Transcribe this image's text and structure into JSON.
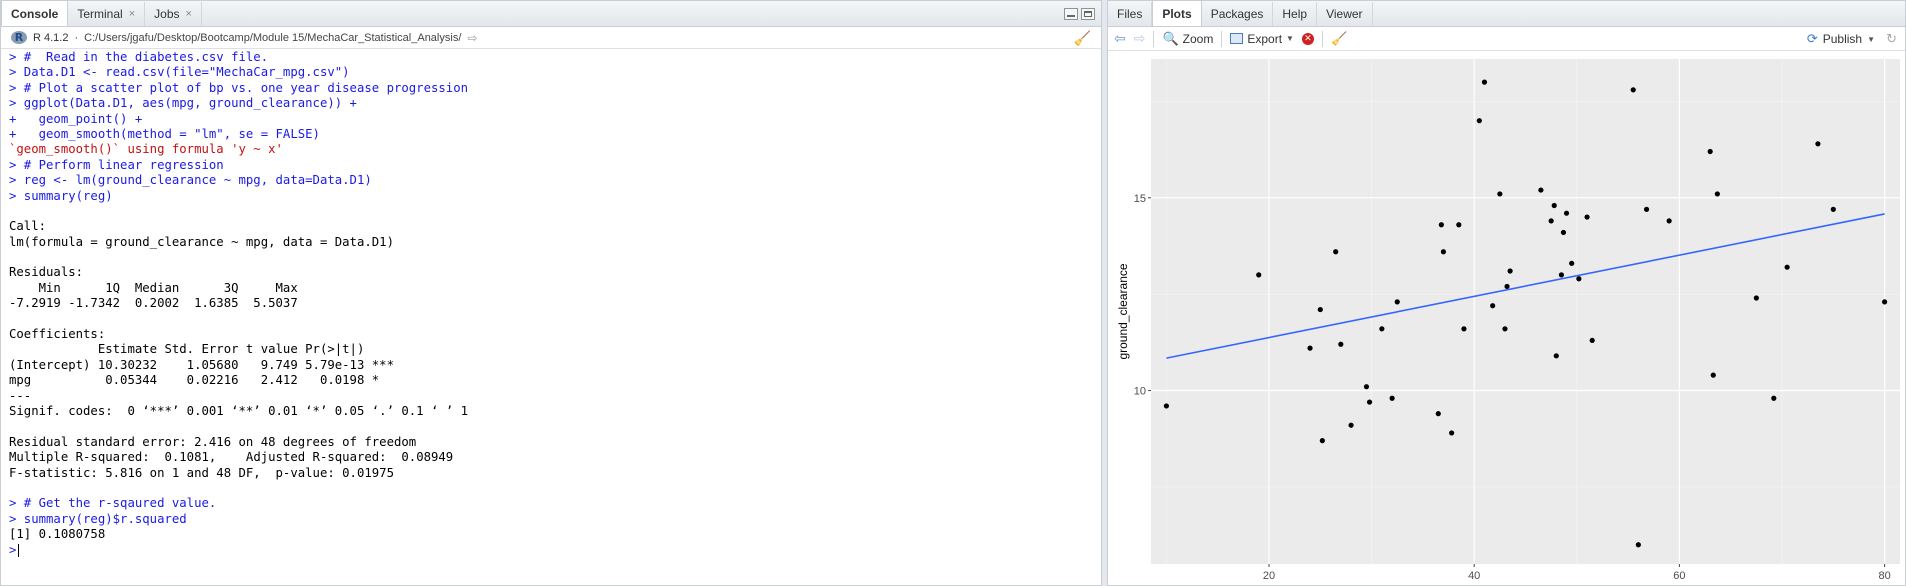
{
  "console_pane": {
    "tabs": [
      {
        "label": "Console",
        "active": true,
        "closable": false
      },
      {
        "label": "Terminal",
        "active": false,
        "closable": true
      },
      {
        "label": "Jobs",
        "active": false,
        "closable": true
      }
    ],
    "r_version": "R 4.1.2",
    "path_sep": "·",
    "working_dir": "C:/Users/jgafu/Desktop/Bootcamp/Module 15/MechaCar_Statistical_Analysis/",
    "lines": [
      {
        "kind": "in",
        "text": "> #  Read in the diabetes.csv file."
      },
      {
        "kind": "in",
        "text": "> Data.D1 <- read.csv(file=\"MechaCar_mpg.csv\")"
      },
      {
        "kind": "in",
        "text": "> # Plot a scatter plot of bp vs. one year disease progression"
      },
      {
        "kind": "in",
        "text": "> ggplot(Data.D1, aes(mpg, ground_clearance)) +"
      },
      {
        "kind": "in",
        "text": "+   geom_point() +"
      },
      {
        "kind": "in",
        "text": "+   geom_smooth(method = \"lm\", se = FALSE)"
      },
      {
        "kind": "err",
        "text": "`geom_smooth()` using formula 'y ~ x'"
      },
      {
        "kind": "in",
        "text": "> # Perform linear regression"
      },
      {
        "kind": "in",
        "text": "> reg <- lm(ground_clearance ~ mpg, data=Data.D1)"
      },
      {
        "kind": "in",
        "text": "> summary(reg)"
      },
      {
        "kind": "out",
        "text": ""
      },
      {
        "kind": "out",
        "text": "Call:"
      },
      {
        "kind": "out",
        "text": "lm(formula = ground_clearance ~ mpg, data = Data.D1)"
      },
      {
        "kind": "out",
        "text": ""
      },
      {
        "kind": "out",
        "text": "Residuals:"
      },
      {
        "kind": "out",
        "text": "    Min      1Q  Median      3Q     Max "
      },
      {
        "kind": "out",
        "text": "-7.2919 -1.7342  0.2002  1.6385  5.5037 "
      },
      {
        "kind": "out",
        "text": ""
      },
      {
        "kind": "out",
        "text": "Coefficients:"
      },
      {
        "kind": "out",
        "text": "            Estimate Std. Error t value Pr(>|t|)    "
      },
      {
        "kind": "out",
        "text": "(Intercept) 10.30232    1.05680   9.749 5.79e-13 ***"
      },
      {
        "kind": "out",
        "text": "mpg          0.05344    0.02216   2.412   0.0198 *  "
      },
      {
        "kind": "out",
        "text": "---"
      },
      {
        "kind": "out",
        "text": "Signif. codes:  0 ‘***’ 0.001 ‘**’ 0.01 ‘*’ 0.05 ‘.’ 0.1 ‘ ’ 1"
      },
      {
        "kind": "out",
        "text": ""
      },
      {
        "kind": "out",
        "text": "Residual standard error: 2.416 on 48 degrees of freedom"
      },
      {
        "kind": "out",
        "text": "Multiple R-squared:  0.1081,\tAdjusted R-squared:  0.08949 "
      },
      {
        "kind": "out",
        "text": "F-statistic: 5.816 on 1 and 48 DF,  p-value: 0.01975"
      },
      {
        "kind": "out",
        "text": ""
      },
      {
        "kind": "in",
        "text": "> # Get the r-sqaured value."
      },
      {
        "kind": "in",
        "text": "> summary(reg)$r.squared"
      },
      {
        "kind": "out",
        "text": "[1] 0.1080758"
      }
    ],
    "prompt": ">"
  },
  "plots_pane": {
    "tabs": [
      {
        "label": "Files",
        "active": false
      },
      {
        "label": "Plots",
        "active": true
      },
      {
        "label": "Packages",
        "active": false
      },
      {
        "label": "Help",
        "active": false
      },
      {
        "label": "Viewer",
        "active": false
      }
    ],
    "toolbar": {
      "zoom_label": "Zoom",
      "export_label": "Export",
      "publish_label": "Publish"
    }
  },
  "chart_data": {
    "type": "scatter",
    "title": "",
    "xlabel": "",
    "ylabel": "ground_clearance",
    "xlim": [
      8.5,
      81.5
    ],
    "ylim": [
      5.5,
      18.6
    ],
    "x_ticks": [
      20,
      40,
      60,
      80
    ],
    "y_ticks": [
      10,
      15
    ],
    "grid": true,
    "panel_bg": "#ebebeb",
    "point_color": "#000000",
    "line_color": "#3366ff",
    "regression_line": {
      "x": [
        10.0,
        80.0
      ],
      "y": [
        10.84,
        14.58
      ]
    },
    "points": [
      [
        10.0,
        9.6
      ],
      [
        19.0,
        13.0
      ],
      [
        24.0,
        11.1
      ],
      [
        25.0,
        12.1
      ],
      [
        25.2,
        8.7
      ],
      [
        26.5,
        13.6
      ],
      [
        27.0,
        11.2
      ],
      [
        28.0,
        9.1
      ],
      [
        29.5,
        10.1
      ],
      [
        29.8,
        9.7
      ],
      [
        31.0,
        11.6
      ],
      [
        32.0,
        9.8
      ],
      [
        32.5,
        12.3
      ],
      [
        36.5,
        9.4
      ],
      [
        36.8,
        14.3
      ],
      [
        37.0,
        13.6
      ],
      [
        37.8,
        8.9
      ],
      [
        38.5,
        14.3
      ],
      [
        39.0,
        11.6
      ],
      [
        40.5,
        17.0
      ],
      [
        41.0,
        18.0
      ],
      [
        41.8,
        12.2
      ],
      [
        42.5,
        15.1
      ],
      [
        43.0,
        11.6
      ],
      [
        43.2,
        12.7
      ],
      [
        43.5,
        13.1
      ],
      [
        46.5,
        15.2
      ],
      [
        47.5,
        14.4
      ],
      [
        47.8,
        14.8
      ],
      [
        48.0,
        10.9
      ],
      [
        48.5,
        13.0
      ],
      [
        48.7,
        14.1
      ],
      [
        49.0,
        14.6
      ],
      [
        49.5,
        13.3
      ],
      [
        50.2,
        12.9
      ],
      [
        51.0,
        14.5
      ],
      [
        51.5,
        11.3
      ],
      [
        55.5,
        17.8
      ],
      [
        56.0,
        6.0
      ],
      [
        56.8,
        14.7
      ],
      [
        59.0,
        14.4
      ],
      [
        63.0,
        16.2
      ],
      [
        63.3,
        10.4
      ],
      [
        63.7,
        15.1
      ],
      [
        67.5,
        12.4
      ],
      [
        69.2,
        9.8
      ],
      [
        70.5,
        13.2
      ],
      [
        73.5,
        16.4
      ],
      [
        75.0,
        14.7
      ],
      [
        80.0,
        12.3
      ]
    ]
  }
}
